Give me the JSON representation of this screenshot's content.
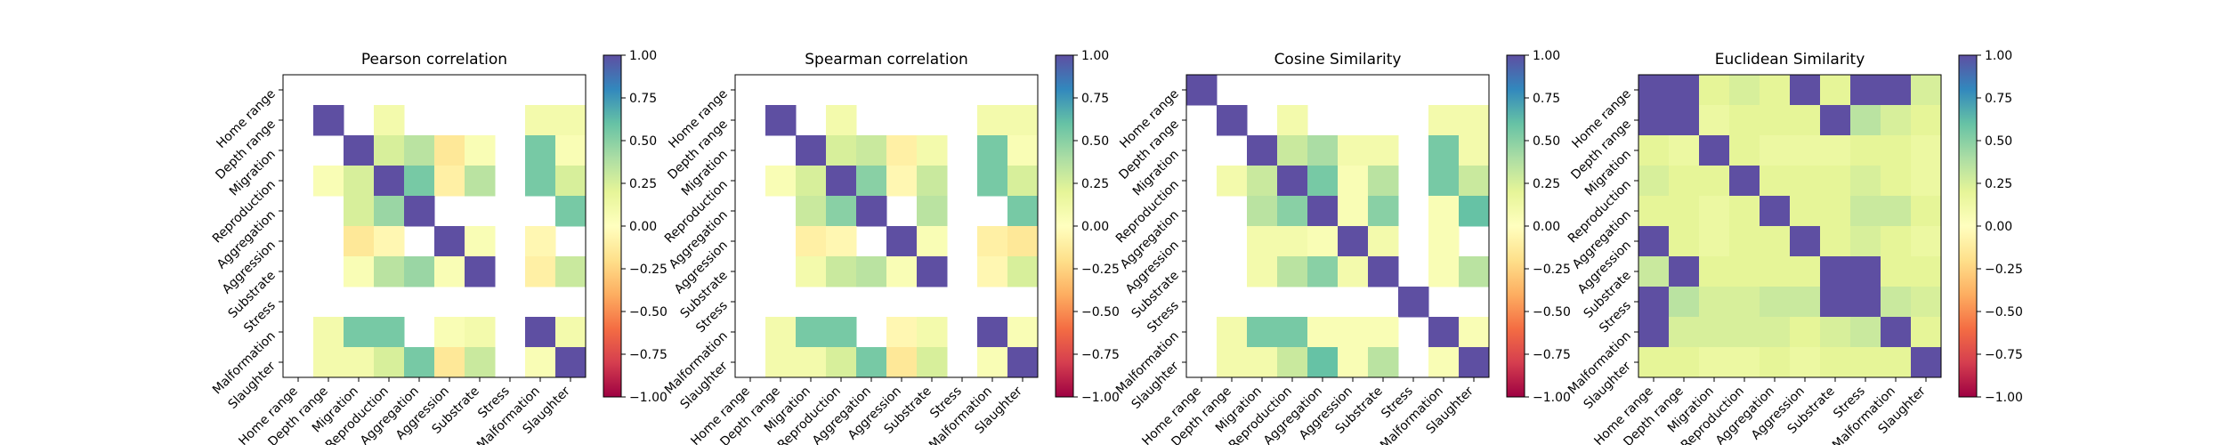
{
  "chart_data": [
    {
      "type": "heatmap",
      "title": "Pearson correlation",
      "labels": [
        "Home range",
        "Depth range",
        "Migration",
        "Reproduction",
        "Aggregation",
        "Aggression",
        "Substrate",
        "Stress",
        "Malformation",
        "Slaughter"
      ],
      "matrix": [
        [
          null,
          null,
          null,
          null,
          null,
          null,
          null,
          null,
          null,
          null
        ],
        [
          null,
          1.0,
          null,
          0.1,
          null,
          null,
          null,
          null,
          0.1,
          0.1
        ],
        [
          null,
          null,
          1.0,
          0.25,
          0.35,
          -0.15,
          0.05,
          null,
          0.55,
          0.05
        ],
        [
          null,
          0.05,
          0.25,
          1.0,
          0.55,
          -0.1,
          0.35,
          null,
          0.55,
          0.25
        ],
        [
          null,
          null,
          0.25,
          0.45,
          1.0,
          null,
          null,
          null,
          null,
          0.55
        ],
        [
          null,
          null,
          -0.15,
          -0.05,
          null,
          1.0,
          0.05,
          null,
          -0.05,
          null
        ],
        [
          null,
          null,
          0.05,
          0.35,
          0.45,
          0.05,
          1.0,
          null,
          -0.1,
          0.3
        ],
        [
          null,
          null,
          null,
          null,
          null,
          null,
          null,
          null,
          null,
          null
        ],
        [
          null,
          0.1,
          0.55,
          0.55,
          null,
          0.05,
          0.1,
          null,
          1.0,
          0.1
        ],
        [
          null,
          0.1,
          0.1,
          0.25,
          0.55,
          -0.15,
          0.3,
          null,
          0.05,
          1.0
        ]
      ],
      "colorbar": {
        "min": -1.0,
        "max": 1.0,
        "ticks": [
          "1.00",
          "0.75",
          "0.50",
          "0.25",
          "0.00",
          "−0.25",
          "−0.50",
          "−0.75",
          "−1.00"
        ]
      }
    },
    {
      "type": "heatmap",
      "title": "Spearman correlation",
      "labels": [
        "Home range",
        "Depth range",
        "Migration",
        "Reproduction",
        "Aggregation",
        "Aggression",
        "Substrate",
        "Stress",
        "Malformation",
        "Slaughter"
      ],
      "matrix": [
        [
          null,
          null,
          null,
          null,
          null,
          null,
          null,
          null,
          null,
          null
        ],
        [
          null,
          1.0,
          null,
          0.1,
          null,
          null,
          null,
          null,
          0.1,
          0.1
        ],
        [
          null,
          null,
          1.0,
          0.25,
          0.3,
          -0.1,
          0.1,
          null,
          0.55,
          0.05
        ],
        [
          null,
          0.05,
          0.25,
          1.0,
          0.5,
          -0.05,
          0.3,
          null,
          0.55,
          0.25
        ],
        [
          null,
          null,
          0.3,
          0.5,
          1.0,
          null,
          0.35,
          null,
          null,
          0.55
        ],
        [
          null,
          null,
          -0.1,
          -0.05,
          null,
          1.0,
          0.05,
          null,
          -0.1,
          -0.15
        ],
        [
          null,
          null,
          0.1,
          0.3,
          0.35,
          0.05,
          1.0,
          null,
          -0.05,
          0.25
        ],
        [
          null,
          null,
          null,
          null,
          null,
          null,
          null,
          null,
          null,
          null
        ],
        [
          null,
          0.1,
          0.55,
          0.55,
          null,
          -0.05,
          0.1,
          null,
          1.0,
          0.05
        ],
        [
          null,
          0.1,
          0.1,
          0.25,
          0.55,
          -0.15,
          0.25,
          null,
          0.05,
          1.0
        ]
      ],
      "colorbar": {
        "min": -1.0,
        "max": 1.0,
        "ticks": [
          "1.00",
          "0.75",
          "0.50",
          "0.25",
          "0.00",
          "−0.25",
          "−0.50",
          "−0.75",
          "−1.00"
        ]
      }
    },
    {
      "type": "heatmap",
      "title": "Cosine Similarity",
      "labels": [
        "Home range",
        "Depth range",
        "Migration",
        "Reproduction",
        "Aggregation",
        "Aggression",
        "Substrate",
        "Stress",
        "Malformation",
        "Slaughter"
      ],
      "matrix": [
        [
          1.0,
          null,
          null,
          null,
          null,
          null,
          null,
          null,
          null,
          null
        ],
        [
          null,
          1.0,
          null,
          0.1,
          null,
          null,
          null,
          null,
          0.1,
          0.1
        ],
        [
          null,
          null,
          1.0,
          0.3,
          0.4,
          0.1,
          0.1,
          null,
          0.55,
          0.1
        ],
        [
          null,
          0.1,
          0.3,
          1.0,
          0.55,
          0.05,
          0.35,
          null,
          0.55,
          0.3
        ],
        [
          null,
          null,
          0.35,
          0.5,
          1.0,
          0.05,
          0.5,
          null,
          0.05,
          0.6
        ],
        [
          null,
          null,
          0.1,
          0.1,
          0.05,
          1.0,
          0.1,
          null,
          0.05,
          null
        ],
        [
          null,
          null,
          0.1,
          0.35,
          0.5,
          0.1,
          1.0,
          null,
          0.05,
          0.35
        ],
        [
          null,
          null,
          null,
          null,
          null,
          null,
          null,
          1.0,
          null,
          null
        ],
        [
          null,
          0.1,
          0.55,
          0.55,
          0.05,
          0.05,
          0.05,
          null,
          1.0,
          0.05
        ],
        [
          null,
          0.1,
          0.1,
          0.3,
          0.6,
          0.05,
          0.35,
          null,
          0.05,
          1.0
        ]
      ],
      "colorbar": {
        "min": -1.0,
        "max": 1.0,
        "ticks": [
          "1.00",
          "0.75",
          "0.50",
          "0.25",
          "0.00",
          "−0.25",
          "−0.50",
          "−0.75",
          "−1.00"
        ]
      }
    },
    {
      "type": "heatmap",
      "title": "Euclidean Similarity",
      "labels": [
        "Home range",
        "Depth range",
        "Migration",
        "Reproduction",
        "Aggregation",
        "Aggression",
        "Substrate",
        "Stress",
        "Malformation",
        "Slaughter"
      ],
      "matrix": [
        [
          1.0,
          1.0,
          0.2,
          0.25,
          0.2,
          1.0,
          0.2,
          1.0,
          1.0,
          0.25
        ],
        [
          1.0,
          1.0,
          0.15,
          0.2,
          0.2,
          0.2,
          1.0,
          0.35,
          0.25,
          0.2
        ],
        [
          0.2,
          0.15,
          1.0,
          0.2,
          0.15,
          0.15,
          0.15,
          0.2,
          0.2,
          0.15
        ],
        [
          0.25,
          0.2,
          0.2,
          1.0,
          0.2,
          0.2,
          0.2,
          0.25,
          0.2,
          0.15
        ],
        [
          0.2,
          0.2,
          0.15,
          0.2,
          1.0,
          0.2,
          0.2,
          0.3,
          0.3,
          0.2
        ],
        [
          1.0,
          0.2,
          0.15,
          0.2,
          0.2,
          1.0,
          0.2,
          0.25,
          0.2,
          0.15
        ],
        [
          0.3,
          1.0,
          0.2,
          0.2,
          0.2,
          0.2,
          1.0,
          1.0,
          0.2,
          0.2
        ],
        [
          1.0,
          0.35,
          0.25,
          0.25,
          0.3,
          0.3,
          1.0,
          1.0,
          0.3,
          0.25
        ],
        [
          1.0,
          0.25,
          0.25,
          0.25,
          0.25,
          0.2,
          0.25,
          0.3,
          1.0,
          0.2
        ],
        [
          0.2,
          0.2,
          0.15,
          0.15,
          0.2,
          0.15,
          0.2,
          0.2,
          0.2,
          1.0
        ]
      ],
      "colorbar": {
        "min": -1.0,
        "max": 1.0,
        "ticks": [
          "1.00",
          "0.75",
          "0.50",
          "0.25",
          "0.00",
          "−0.25",
          "−0.50",
          "−0.75",
          "−1.00"
        ]
      }
    }
  ],
  "colors": {
    "colormap": "Spectral",
    "stops": [
      "#9e0142",
      "#d53e4f",
      "#f46d43",
      "#fdae61",
      "#fee08b",
      "#ffffbf",
      "#e6f598",
      "#abdda4",
      "#66c2a5",
      "#3288bd",
      "#5e4fa2"
    ],
    "axis": "#000000",
    "background": "#ffffff"
  }
}
